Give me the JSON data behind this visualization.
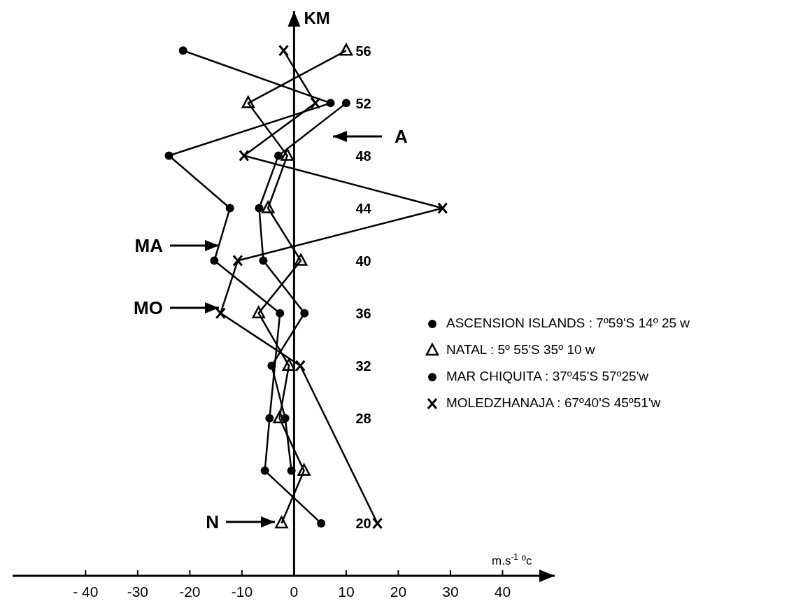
{
  "chart_data": {
    "type": "line",
    "ylabel": "KM",
    "xlabel": "m.s$^{-1}$ ºc",
    "xlim": [
      -54,
      50
    ],
    "ylim": [
      16,
      59
    ],
    "xticks": [
      {
        "value": -40,
        "label": "- 40"
      },
      {
        "value": -30,
        "label": "-30"
      },
      {
        "value": -20,
        "label": "-20"
      },
      {
        "value": -10,
        "label": "-10"
      },
      0,
      10,
      20,
      30,
      40
    ],
    "yticks": [
      20,
      28,
      32,
      36,
      40,
      44,
      48,
      52,
      56
    ],
    "legend": "right",
    "line_style": "solid",
    "series": [
      {
        "name": "ASCENSION ISLANDS : 7º59'S 14º 25 w",
        "color": "#000000",
        "marker": "circle",
        "x": [
          -0.5,
          -1.7,
          -4.3,
          2,
          -5.9,
          -6.7,
          -3,
          10
        ],
        "values": [
          24,
          28,
          32,
          36,
          40,
          44,
          48,
          52
        ]
      },
      {
        "name": "NATAL : 5º 55'S 35º 10 w",
        "color": "#000000",
        "marker": "triangle",
        "x": [
          -2.4,
          1.9,
          -2.8,
          -1,
          -6.8,
          1.3,
          -5,
          -1.3,
          -8.8,
          10
        ],
        "values": [
          20,
          24,
          28,
          32,
          36,
          40,
          44,
          48,
          52,
          56
        ]
      },
      {
        "name": "MAR CHIQUITA : 37º45'S 57º25'w",
        "color": "#000000",
        "marker": "circle",
        "x": [
          5.2,
          -5.6,
          -4.7,
          -2.7,
          -15.3,
          -12.3,
          -24,
          7,
          -21.3
        ],
        "values": [
          20,
          24,
          28,
          36,
          40,
          44,
          48,
          52,
          56
        ]
      },
      {
        "name": "MOLEDZHANAJA : 67º40'S 45º51'w",
        "color": "#000000",
        "marker": "cross",
        "x": [
          16,
          1.2,
          -14.1,
          -10.8,
          28.5,
          -9.6,
          4.1,
          -2
        ],
        "values": [
          20,
          32,
          36,
          40,
          44,
          48,
          52,
          56
        ]
      }
    ],
    "annotations": [
      "A",
      "MA",
      "MO",
      "N"
    ]
  }
}
